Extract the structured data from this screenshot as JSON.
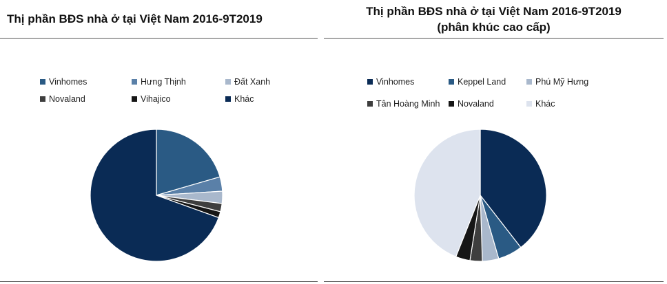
{
  "chart_data": [
    {
      "type": "pie",
      "title": "Thị phần BĐS nhà ở tại Việt Nam 2016-9T2019",
      "legend_position": "top",
      "slices": [
        {
          "label": "Vinhomes",
          "value": 20.5,
          "color": "#2a5a84"
        },
        {
          "label": "Hưng Thịnh",
          "value": 3.5,
          "color": "#5a80a8"
        },
        {
          "label": "Đất Xanh",
          "value": 3.0,
          "color": "#a9b8cc"
        },
        {
          "label": "Novaland",
          "value": 2.0,
          "color": "#3e3e3e"
        },
        {
          "label": "Vihajico",
          "value": 1.5,
          "color": "#161616"
        },
        {
          "label": "Khác",
          "value": 69.5,
          "color": "#0a2b55"
        }
      ]
    },
    {
      "type": "pie",
      "title": "Thị phần BĐS nhà ở tại Việt Nam 2016-9T2019\n(phân khúc cao cấp)",
      "legend_position": "top",
      "slices": [
        {
          "label": "Vinhomes",
          "value": 39.5,
          "color": "#0a2b55"
        },
        {
          "label": "Keppel Land",
          "value": 6.0,
          "color": "#2a5a84"
        },
        {
          "label": "Phú Mỹ Hưng",
          "value": 4.0,
          "color": "#a9b8cc"
        },
        {
          "label": "Tân Hoàng Minh",
          "value": 3.0,
          "color": "#3e3e3e"
        },
        {
          "label": "Novaland",
          "value": 3.5,
          "color": "#161616"
        },
        {
          "label": "Khác",
          "value": 44.0,
          "color": "#dde3ee"
        }
      ]
    }
  ]
}
